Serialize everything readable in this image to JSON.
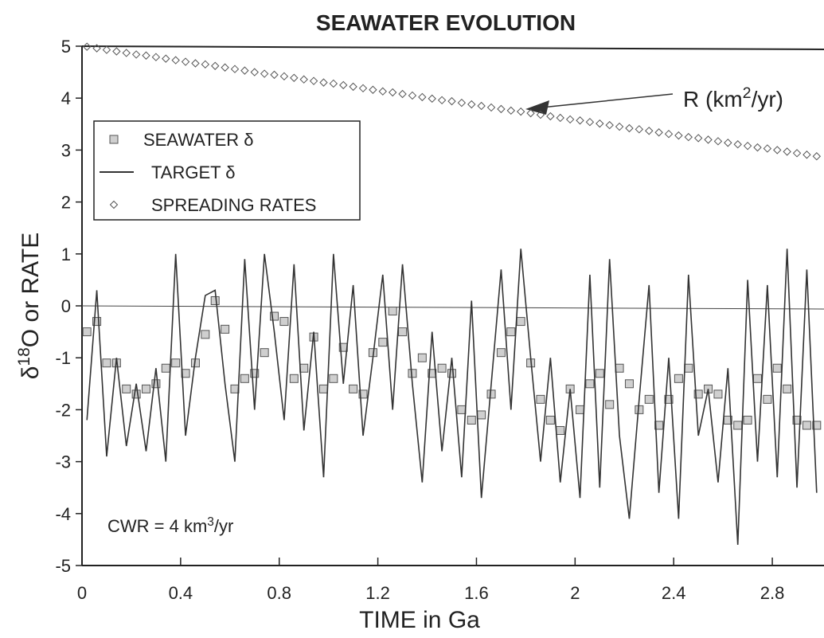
{
  "chart_data": {
    "type": "line",
    "title": "SEAWATER EVOLUTION",
    "xlabel": "TIME in Ga",
    "ylabel": [
      "δ",
      "18",
      "O or RATE"
    ],
    "annotations": [
      {
        "parts": [
          "R (km",
          "2",
          "/yr)"
        ]
      },
      {
        "parts": [
          "CWR = 4 km",
          "3",
          "/yr"
        ]
      }
    ],
    "xlim": [
      0,
      3
    ],
    "ylim": [
      -5,
      5
    ],
    "xticks": [
      0,
      0.4,
      0.8,
      1.2,
      1.6,
      2,
      2.4,
      2.8
    ],
    "yticks": [
      -5,
      -4,
      -3,
      -2,
      -1,
      0,
      1,
      2,
      3,
      4,
      5
    ],
    "reference_line": 0,
    "legend": "upper left",
    "x": [
      0.02,
      0.06,
      0.1,
      0.14,
      0.18,
      0.22,
      0.26,
      0.3,
      0.34,
      0.38,
      0.42,
      0.46,
      0.5,
      0.54,
      0.58,
      0.62,
      0.66,
      0.7,
      0.74,
      0.78,
      0.82,
      0.86,
      0.9,
      0.94,
      0.98,
      1.02,
      1.06,
      1.1,
      1.14,
      1.18,
      1.22,
      1.26,
      1.3,
      1.34,
      1.38,
      1.42,
      1.46,
      1.5,
      1.54,
      1.58,
      1.62,
      1.66,
      1.7,
      1.74,
      1.78,
      1.82,
      1.86,
      1.9,
      1.94,
      1.98,
      2.02,
      2.06,
      2.1,
      2.14,
      2.18,
      2.22,
      2.26,
      2.3,
      2.34,
      2.38,
      2.42,
      2.46,
      2.5,
      2.54,
      2.58,
      2.62,
      2.66,
      2.7,
      2.74,
      2.78,
      2.82,
      2.86,
      2.9,
      2.94,
      2.98
    ],
    "series": [
      {
        "name": "SEAWATER δ",
        "style": "square",
        "color": "#cfcfcf",
        "values": [
          -0.5,
          -0.3,
          -1.1,
          -1.1,
          -1.6,
          -1.7,
          -1.6,
          -1.5,
          -1.2,
          -1.1,
          -1.3,
          -1.1,
          -0.55,
          0.1,
          -0.45,
          -1.6,
          -1.4,
          -1.3,
          -0.9,
          -0.2,
          -0.3,
          -1.4,
          -1.2,
          -0.6,
          -1.6,
          -1.4,
          -0.8,
          -1.6,
          -1.7,
          -0.9,
          -0.7,
          -0.1,
          -0.5,
          -1.3,
          -1.0,
          -1.3,
          -1.2,
          -1.3,
          -2.0,
          -2.2,
          -2.1,
          -1.7,
          -0.9,
          -0.5,
          -0.3,
          -1.1,
          -1.8,
          -2.2,
          -2.4,
          -1.6,
          -2.0,
          -1.5,
          -1.3,
          -1.9,
          -1.2,
          -1.5,
          -2.0,
          -1.8,
          -2.3,
          -1.8,
          -1.4,
          -1.2,
          -1.7,
          -1.6,
          -1.7,
          -2.2,
          -2.3,
          -2.2,
          -1.4,
          -1.8,
          -1.2,
          -1.6,
          -2.2,
          -2.3,
          -2.3
        ]
      },
      {
        "name": "TARGET δ",
        "style": "line",
        "color": "#333333",
        "values": [
          -2.2,
          0.3,
          -2.9,
          -1.0,
          -2.7,
          -1.5,
          -2.8,
          -1.2,
          -3.0,
          1.0,
          -2.5,
          -1.0,
          0.2,
          0.3,
          -1.5,
          -3.0,
          0.9,
          -2.0,
          1.0,
          -0.5,
          -2.2,
          0.8,
          -2.4,
          -0.5,
          -3.3,
          1.0,
          -1.5,
          0.4,
          -2.5,
          -1.0,
          0.6,
          -2.0,
          0.8,
          -1.5,
          -3.4,
          -0.5,
          -2.8,
          -1.0,
          -3.3,
          0.1,
          -3.7,
          -1.5,
          0.7,
          -2.0,
          1.1,
          -1.0,
          -3.0,
          -1.0,
          -3.4,
          -1.6,
          -3.7,
          0.6,
          -3.5,
          0.9,
          -2.5,
          -4.1,
          -1.8,
          0.4,
          -3.6,
          -1.0,
          -4.1,
          0.6,
          -2.5,
          -1.6,
          -3.4,
          -1.2,
          -4.6,
          0.5,
          -3.0,
          0.4,
          -3.3,
          1.1,
          -3.5,
          0.7,
          -3.6
        ]
      },
      {
        "name": "SPREADING RATES",
        "style": "diamond",
        "color": "#555555",
        "values": [
          4.99,
          4.96,
          4.93,
          4.9,
          4.87,
          4.84,
          4.82,
          4.79,
          4.76,
          4.73,
          4.7,
          4.67,
          4.65,
          4.62,
          4.59,
          4.56,
          4.53,
          4.5,
          4.47,
          4.45,
          4.42,
          4.39,
          4.36,
          4.33,
          4.3,
          4.28,
          4.25,
          4.22,
          4.19,
          4.16,
          4.13,
          4.11,
          4.08,
          4.05,
          4.02,
          3.99,
          3.96,
          3.94,
          3.91,
          3.88,
          3.85,
          3.82,
          3.79,
          3.76,
          3.74,
          3.71,
          3.68,
          3.65,
          3.62,
          3.59,
          3.57,
          3.54,
          3.51,
          3.48,
          3.45,
          3.42,
          3.4,
          3.37,
          3.34,
          3.31,
          3.28,
          3.25,
          3.23,
          3.2,
          3.17,
          3.14,
          3.11,
          3.08,
          3.05,
          3.03,
          3,
          2.97,
          2.94,
          2.91,
          2.88
        ]
      }
    ]
  }
}
